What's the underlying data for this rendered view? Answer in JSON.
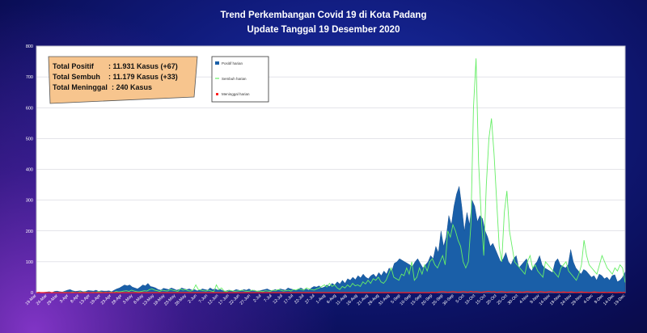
{
  "title": "Trend Perkembangan Covid 19 di Kota Padang",
  "subtitle": "Update Tanggal 19 Desember 2020",
  "stats": {
    "positif_label": "Total Positif",
    "positif_value": ": 11.931 Kasus (+67)",
    "sembuh_label": "Total Sembuh",
    "sembuh_value": ": 11.179 Kasus (+33)",
    "meninggal_label": "Total Meninggal",
    "meninggal_value": ":  240 Kasus"
  },
  "colors": {
    "positif": "#1a5fa8",
    "sembuh": "#66ee66",
    "meninggal": "#ff2020",
    "stats_box": "#f7c58e"
  },
  "chart_data": {
    "type": "area",
    "ylim": [
      0,
      800
    ],
    "yticks": [
      0,
      100,
      200,
      300,
      400,
      500,
      600,
      700,
      800
    ],
    "grid": true,
    "legend_position": "top-left",
    "x_labels": [
      "19-Mar",
      "24-Mar",
      "29-Mar",
      "3-Apr",
      "8-Apr",
      "13-Apr",
      "18-Apr",
      "23-Apr",
      "28-Apr",
      "3-May",
      "8-May",
      "13-May",
      "18-May",
      "23-May",
      "28-May",
      "2-Jun",
      "7-Jun",
      "12-Jun",
      "17-Jun",
      "22-Jun",
      "27-Jun",
      "2-Jul",
      "7-Jul",
      "12-Jul",
      "17-Jul",
      "22-Jul",
      "27-Jul",
      "1-Aug",
      "6-Aug",
      "11-Aug",
      "16-Aug",
      "21-Aug",
      "26-Aug",
      "31-Aug",
      "5-Sep",
      "10-Sep",
      "15-Sep",
      "20-Sep",
      "25-Sep",
      "30-Sep",
      "5-Oct",
      "10-Oct",
      "15-Oct",
      "20-Oct",
      "25-Oct",
      "30-Oct",
      "4-Nov",
      "9-Nov",
      "14-Nov",
      "19-Nov",
      "24-Nov",
      "29-Nov",
      "4-Dec",
      "9-Dec",
      "14-Dec",
      "19-Dec"
    ],
    "series": [
      {
        "name": "Positif harian",
        "kind": "area",
        "values": [
          0,
          2,
          0,
          1,
          2,
          3,
          0,
          4,
          5,
          3,
          2,
          5,
          8,
          10,
          6,
          4,
          5,
          6,
          3,
          4,
          7,
          6,
          5,
          8,
          4,
          6,
          5,
          5,
          6,
          3,
          8,
          12,
          15,
          20,
          25,
          22,
          25,
          18,
          15,
          12,
          18,
          25,
          22,
          30,
          20,
          18,
          15,
          10,
          8,
          14,
          12,
          10,
          15,
          12,
          8,
          10,
          15,
          12,
          10,
          12,
          8,
          10,
          6,
          8,
          12,
          10,
          8,
          15,
          10,
          12,
          8,
          10,
          6,
          5,
          8,
          5,
          6,
          10,
          8,
          6,
          10,
          8,
          12,
          6,
          8,
          5,
          6,
          8,
          10,
          12,
          8,
          6,
          10,
          8,
          12,
          10,
          8,
          15,
          12,
          10,
          8,
          12,
          15,
          10,
          12,
          8,
          15,
          20,
          18,
          22,
          15,
          18,
          25,
          20,
          30,
          25,
          35,
          28,
          40,
          30,
          45,
          40,
          50,
          42,
          55,
          48,
          60,
          50,
          45,
          55,
          60,
          50,
          65,
          55,
          70,
          60,
          80,
          70,
          95,
          100,
          110,
          105,
          100,
          95,
          90,
          85,
          100,
          110,
          95,
          80,
          90,
          100,
          120,
          110,
          150,
          130,
          200,
          150,
          180,
          250,
          220,
          280,
          320,
          345,
          280,
          200,
          260,
          220,
          300,
          280,
          230,
          250,
          240,
          200,
          180,
          150,
          160,
          140,
          120,
          100,
          110,
          130,
          100,
          90,
          110,
          120,
          80,
          90,
          100,
          110,
          80,
          70,
          90,
          100,
          120,
          90,
          80,
          75,
          70,
          65,
          100,
          110,
          90,
          85,
          80,
          90,
          140,
          100,
          80,
          70,
          60,
          75,
          70,
          60,
          50,
          55,
          40,
          60,
          55,
          45,
          50,
          40,
          55,
          58,
          35,
          40,
          50,
          67
        ]
      },
      {
        "name": "Sembuh harian",
        "kind": "line",
        "values": [
          0,
          0,
          0,
          0,
          0,
          0,
          0,
          0,
          0,
          0,
          0,
          1,
          0,
          0,
          2,
          0,
          0,
          3,
          0,
          2,
          0,
          0,
          1,
          0,
          3,
          2,
          0,
          1,
          0,
          2,
          0,
          4,
          2,
          3,
          5,
          6,
          4,
          8,
          5,
          3,
          2,
          4,
          6,
          5,
          10,
          12,
          8,
          6,
          4,
          8,
          6,
          5,
          10,
          8,
          6,
          4,
          12,
          8,
          10,
          6,
          5,
          8,
          25,
          10,
          8,
          6,
          5,
          8,
          5,
          3,
          25,
          10,
          15,
          5,
          3,
          8,
          6,
          4,
          5,
          6,
          8,
          5,
          4,
          5,
          8,
          6,
          4,
          5,
          3,
          6,
          5,
          4,
          8,
          6,
          10,
          8,
          5,
          6,
          8,
          5,
          10,
          8,
          12,
          10,
          8,
          15,
          12,
          10,
          8,
          12,
          15,
          20,
          25,
          18,
          30,
          20,
          25,
          15,
          10,
          20,
          15,
          25,
          18,
          30,
          22,
          25,
          20,
          35,
          28,
          40,
          30,
          45,
          40,
          50,
          35,
          30,
          40,
          60,
          80,
          50,
          45,
          40,
          60,
          55,
          80,
          60,
          100,
          40,
          50,
          80,
          60,
          90,
          70,
          100,
          110,
          90,
          80,
          100,
          120,
          90,
          200,
          180,
          220,
          200,
          170,
          150,
          100,
          80,
          100,
          220,
          600,
          760,
          420,
          250,
          120,
          350,
          500,
          565,
          450,
          300,
          150,
          100,
          260,
          330,
          200,
          150,
          100,
          90,
          80,
          70,
          60,
          100,
          120,
          80,
          90,
          70,
          60,
          50,
          100,
          90,
          80,
          70,
          60,
          50,
          80,
          90,
          100,
          70,
          60,
          50,
          40,
          60,
          90,
          170,
          120,
          90,
          80,
          70,
          60,
          90,
          120,
          100,
          80,
          70,
          60,
          80,
          70,
          90,
          80,
          33
        ]
      },
      {
        "name": "Meninggal harian",
        "kind": "line",
        "values": [
          0,
          0,
          0,
          0,
          0,
          0,
          0,
          0,
          0,
          0,
          0,
          0,
          0,
          0,
          0,
          0,
          0,
          0,
          0,
          0,
          0,
          0,
          0,
          0,
          0,
          0,
          0,
          0,
          0,
          0,
          0,
          0,
          0,
          0,
          0,
          0,
          0,
          0,
          0,
          0,
          0,
          0,
          0,
          0,
          0,
          0,
          0,
          0,
          0,
          0,
          0,
          0,
          0,
          0,
          0,
          0,
          0,
          0,
          0,
          0,
          0,
          0,
          0,
          0,
          0,
          0,
          0,
          0,
          0,
          0,
          0,
          0,
          0,
          0,
          0,
          0,
          0,
          0,
          0,
          0,
          0,
          0,
          0,
          0,
          0,
          0,
          0,
          0,
          0,
          0,
          0,
          0,
          0,
          0,
          0,
          0,
          0,
          0,
          0,
          0,
          0,
          0,
          0,
          0,
          0,
          0,
          0,
          0,
          0,
          0,
          0,
          0,
          0,
          0,
          0,
          0,
          0,
          0,
          0,
          0,
          0,
          0,
          0,
          0,
          0,
          0,
          0,
          0,
          0,
          0,
          0,
          0,
          0,
          0,
          0,
          0,
          0,
          0,
          0,
          0,
          0,
          0,
          0,
          0,
          0,
          0,
          0,
          0,
          0,
          0,
          0,
          0,
          0,
          0,
          1,
          0,
          1,
          2,
          3,
          2,
          1,
          2,
          3,
          2,
          1,
          2,
          3,
          2,
          1,
          4,
          2,
          3,
          2,
          1,
          2,
          3,
          4,
          2,
          3,
          1,
          2,
          3,
          2,
          1,
          2,
          3,
          2,
          1,
          2,
          1,
          2,
          3,
          2,
          1,
          2,
          1,
          3,
          2,
          1,
          2,
          3,
          2,
          1,
          2,
          1,
          2,
          1,
          1,
          2,
          1,
          0,
          1,
          2,
          1,
          1,
          0,
          1,
          2,
          1,
          0,
          1,
          1,
          0,
          1,
          1,
          0,
          0,
          1,
          0,
          1
        ]
      }
    ]
  }
}
